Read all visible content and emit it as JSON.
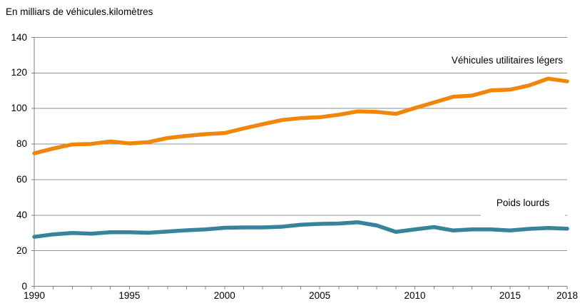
{
  "title": "En milliars de véhicules.kilomètres",
  "colors": {
    "background": "#ffffff",
    "grid": "#919191",
    "axis": "#808080",
    "text": "#000000"
  },
  "chart_data": {
    "type": "line",
    "title": "En milliars de véhicules.kilomètres",
    "xlabel": "",
    "ylabel": "En milliars de véhicules.kilomètres",
    "xlim": [
      1990,
      2018
    ],
    "ylim": [
      0,
      140
    ],
    "ytick_step": 20,
    "yticks": [
      0,
      20,
      40,
      60,
      80,
      100,
      120,
      140
    ],
    "xticks": [
      1990,
      1995,
      2000,
      2005,
      2010,
      2015,
      2018
    ],
    "grid": "horizontal",
    "legend_position": "inline-end-labels",
    "x": [
      1990,
      1991,
      1992,
      1993,
      1994,
      1995,
      1996,
      1997,
      1998,
      1999,
      2000,
      2001,
      2002,
      2003,
      2004,
      2005,
      2006,
      2007,
      2008,
      2009,
      2010,
      2011,
      2012,
      2013,
      2014,
      2015,
      2016,
      2017,
      2018
    ],
    "series": [
      {
        "name": "Véhicules utilitaires légers",
        "color": "#F0860A",
        "values": [
          74.8,
          77.5,
          79.8,
          80.1,
          81.5,
          80.4,
          81.1,
          83.4,
          84.6,
          85.6,
          86.2,
          88.8,
          91.2,
          93.5,
          94.6,
          95.1,
          96.5,
          98.4,
          98.1,
          97.0,
          100.3,
          103.4,
          106.6,
          107.3,
          110.2,
          110.6,
          113.0,
          116.8,
          115.3
        ]
      },
      {
        "name": "Poids lourds",
        "color": "#37839B",
        "values": [
          27.8,
          29.2,
          30.0,
          29.6,
          30.4,
          30.4,
          30.1,
          30.8,
          31.5,
          32.0,
          32.9,
          33.1,
          33.1,
          33.5,
          34.6,
          35.1,
          35.3,
          36.0,
          34.2,
          30.6,
          32.0,
          33.3,
          31.4,
          32.0,
          32.0,
          31.4,
          32.3,
          32.8,
          32.4
        ]
      }
    ]
  }
}
